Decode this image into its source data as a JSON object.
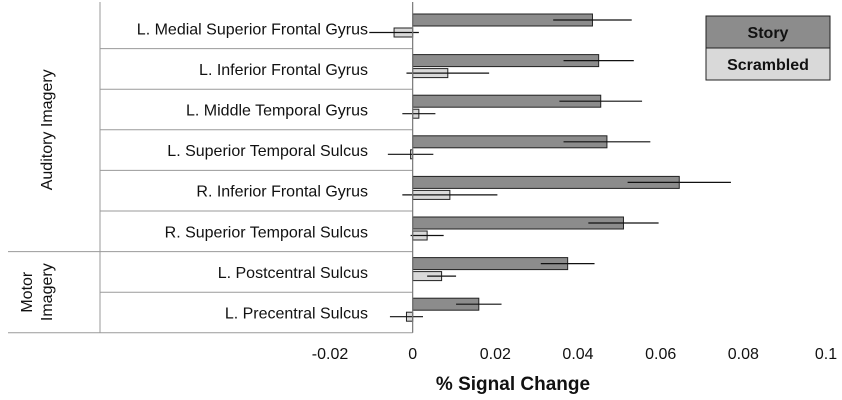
{
  "chart_data": {
    "type": "bar",
    "orientation": "horizontal",
    "xlabel": "% Signal Change",
    "xlim": [
      -0.02,
      0.1
    ],
    "xticks": [
      -0.02,
      0,
      0.02,
      0.04,
      0.06,
      0.08,
      0.1
    ],
    "xtick_labels": [
      "-0.02",
      "0",
      "0.02",
      "0.04",
      "0.06",
      "0.08",
      "0.1"
    ],
    "grid": false,
    "legend_position": "top-right",
    "categories": [
      "L. Medial Superior Frontal Gyrus",
      "L. Inferior Frontal Gyrus",
      "L. Middle Temporal Gyrus",
      "L. Superior Temporal Sulcus",
      "R. Inferior Frontal Gyrus",
      "R. Superior Temporal Sulcus",
      "L. Postcentral Sulcus",
      "L. Precentral Sulcus"
    ],
    "groups": [
      {
        "label": "Auditory Imagery",
        "count": 6
      },
      {
        "label": "Motor Imagery",
        "count": 2
      }
    ],
    "series": [
      {
        "name": "Story",
        "color": "#8c8c8c",
        "values": [
          0.0435,
          0.045,
          0.0455,
          0.047,
          0.0645,
          0.051,
          0.0375,
          0.016
        ],
        "errors": [
          0.0095,
          0.0085,
          0.01,
          0.0105,
          0.0125,
          0.0085,
          0.0065,
          0.0055
        ]
      },
      {
        "name": "Scrambled",
        "color": "#d9d9d9",
        "values": [
          -0.0045,
          0.0085,
          0.0015,
          -0.0005,
          0.009,
          0.0035,
          0.007,
          -0.0015
        ],
        "errors": [
          0.006,
          0.01,
          0.004,
          0.0055,
          0.0115,
          0.004,
          0.0035,
          0.004
        ]
      }
    ]
  }
}
